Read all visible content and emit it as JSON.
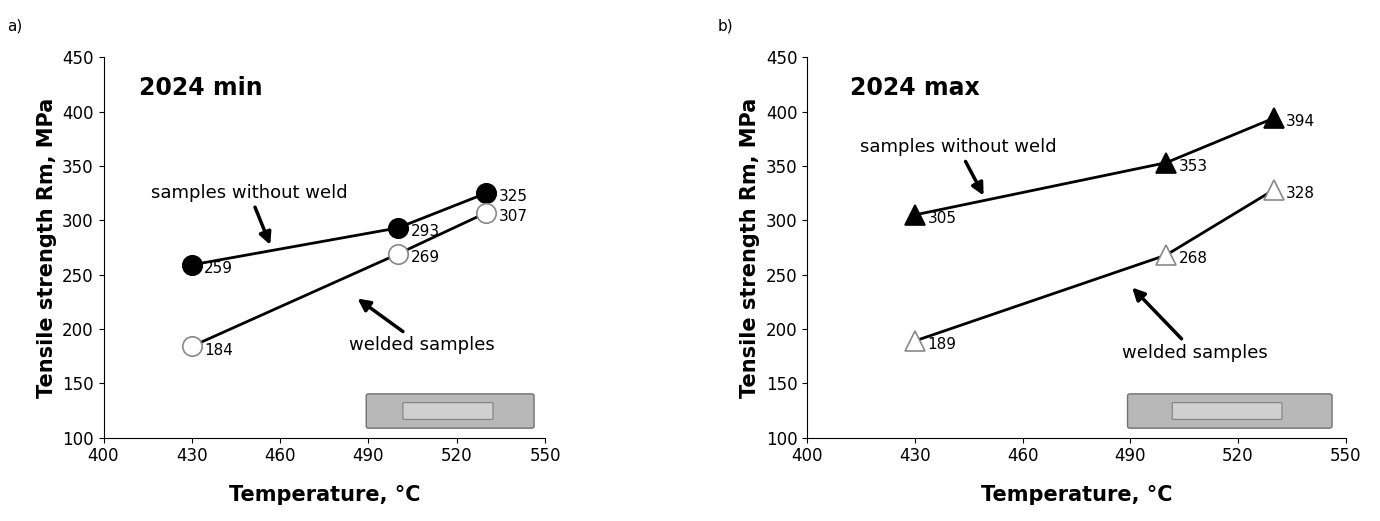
{
  "chart_data": [
    {
      "type": "line",
      "label": "a)",
      "title": "2024 min",
      "x_label": "Temperature, °C",
      "y_label": "Tensile strength Rm, MPa",
      "x": [
        430,
        500,
        530
      ],
      "series": [
        {
          "name": "samples without weld",
          "color": "#000000",
          "marker": "circle",
          "values": [
            259,
            293,
            325
          ]
        },
        {
          "name": "welded samples",
          "color": "#000000",
          "marker": "circle_open",
          "values": [
            184,
            269,
            307
          ]
        }
      ],
      "xlim": [
        400,
        550
      ],
      "xticks": [
        400,
        430,
        460,
        490,
        520,
        550
      ],
      "ylim": [
        100,
        450
      ],
      "yticks": [
        100,
        150,
        200,
        250,
        300,
        350,
        400,
        450
      ],
      "data_labels": true,
      "grid": false
    },
    {
      "type": "line",
      "label": "b)",
      "title": "2024 max",
      "x_label": "Temperature, °C",
      "y_label": "Tensile strength Rm, MPa",
      "x": [
        430,
        500,
        530
      ],
      "series": [
        {
          "name": "samples without weld",
          "color": "#000000",
          "marker": "triangle",
          "values": [
            305,
            353,
            394
          ]
        },
        {
          "name": "welded samples",
          "color": "#000000",
          "marker": "triangle_open",
          "values": [
            189,
            268,
            328
          ]
        }
      ],
      "xlim": [
        400,
        550
      ],
      "xticks": [
        400,
        430,
        460,
        490,
        520,
        550
      ],
      "ylim": [
        100,
        450
      ],
      "yticks": [
        100,
        150,
        200,
        250,
        300,
        350,
        400,
        450
      ],
      "data_labels": true,
      "grid": false
    }
  ]
}
